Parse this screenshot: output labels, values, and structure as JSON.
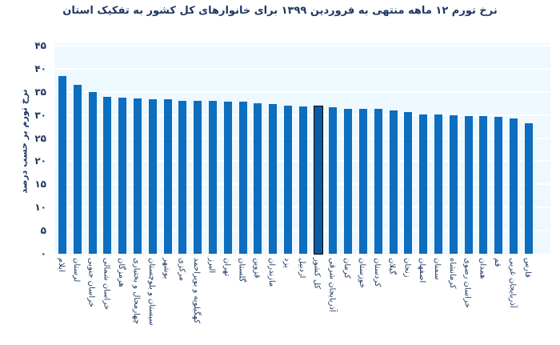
{
  "chart_data": {
    "type": "bar",
    "title": "نرخ تورم ۱۲ ماهه منتهی به فروردین ۱۳۹۹ برای خانوارهای کل کشور به تفکیک استان",
    "xlabel": "",
    "ylabel": "نرخ تورم بر حسب درصد",
    "ylim": [
      0,
      45
    ],
    "yticks": [
      "۰",
      "۵",
      "۱۰",
      "۱۵",
      "۲۰",
      "۲۵",
      "۳۰",
      "۳۵",
      "۴۰",
      "۴۵"
    ],
    "ytick_values": [
      0,
      5,
      10,
      15,
      20,
      25,
      30,
      35,
      40,
      45
    ],
    "grid": true,
    "legend": "none",
    "highlight": "کل کشور",
    "categories": [
      "ایلام",
      "لرستان",
      "خراسان جنوبی",
      "خراسان شمالی",
      "هرمزگان",
      "چهارمحال و بختیاری",
      "سیستان و بلوچستان",
      "بوشهر",
      "مرکزی",
      "کهگیلویه و بویراحمد",
      "البرز",
      "تهران",
      "گلستان",
      "قزوین",
      "مازندران",
      "یزد",
      "اردبیل",
      "کل کشور",
      "آذربایجان شرقی",
      "کرمان",
      "خوزستان",
      "کردستان",
      "گیلان",
      "زنجان",
      "اصفهان",
      "سمنان",
      "کرمانشاه",
      "خراسان رضوی",
      "همدان",
      "قم",
      "آذربایجان غربی",
      "فارس"
    ],
    "values": [
      38.5,
      36.5,
      35.0,
      33.9,
      33.8,
      33.6,
      33.4,
      33.4,
      33.1,
      33.1,
      33.1,
      32.9,
      32.9,
      32.6,
      32.4,
      32.1,
      31.9,
      31.9,
      31.6,
      31.4,
      31.4,
      31.3,
      30.9,
      30.6,
      30.1,
      30.1,
      29.9,
      29.7,
      29.7,
      29.6,
      29.2,
      28.2
    ]
  },
  "colors": {
    "bar": "#0d6dbe",
    "plot_bg": "#eef8ff",
    "text": "#1f3864",
    "highlight_border": "#000000"
  }
}
